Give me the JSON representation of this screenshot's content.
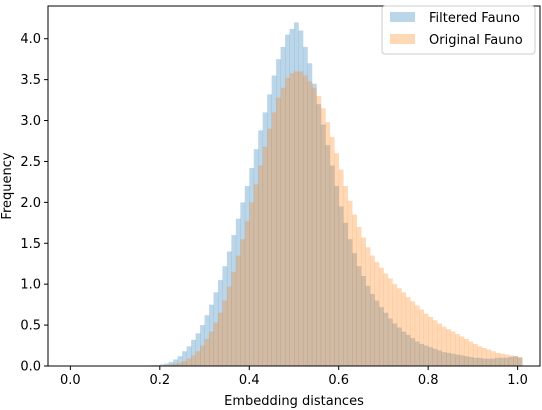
{
  "chart_data": {
    "type": "histogram",
    "xlabel": "Embedding distances",
    "ylabel": "Frequency",
    "xlim": [
      -0.05,
      1.05
    ],
    "ylim": [
      0,
      4.4
    ],
    "x_ticks": [
      {
        "value": 0.0,
        "label": "0.0"
      },
      {
        "value": 0.2,
        "label": "0.2"
      },
      {
        "value": 0.4,
        "label": "0.4"
      },
      {
        "value": 0.6,
        "label": "0.6"
      },
      {
        "value": 0.8,
        "label": "0.8"
      },
      {
        "value": 1.0,
        "label": "1.0"
      }
    ],
    "y_ticks": [
      {
        "value": 0.0,
        "label": "0.0"
      },
      {
        "value": 0.5,
        "label": "0.5"
      },
      {
        "value": 1.0,
        "label": "1.0"
      },
      {
        "value": 1.5,
        "label": "1.5"
      },
      {
        "value": 2.0,
        "label": "2.0"
      },
      {
        "value": 2.5,
        "label": "2.5"
      },
      {
        "value": 3.0,
        "label": "3.0"
      },
      {
        "value": 3.5,
        "label": "3.5"
      },
      {
        "value": 4.0,
        "label": "4.0"
      }
    ],
    "legend_position": "top-right",
    "bin_start": 0.0,
    "bin_width": 0.01,
    "series": [
      {
        "name": "Filtered Fauno",
        "color": "#1f77b4",
        "alpha": 0.3,
        "values": [
          0,
          0,
          0,
          0,
          0,
          0,
          0,
          0,
          0,
          0,
          0,
          0,
          0,
          0,
          0,
          0,
          0,
          0,
          0.01,
          0.01,
          0.02,
          0.03,
          0.05,
          0.08,
          0.12,
          0.18,
          0.24,
          0.32,
          0.4,
          0.5,
          0.62,
          0.75,
          0.9,
          1.05,
          1.22,
          1.4,
          1.6,
          1.8,
          2.0,
          2.2,
          2.42,
          2.65,
          2.88,
          3.1,
          3.32,
          3.55,
          3.75,
          3.9,
          4.05,
          4.12,
          4.2,
          4.1,
          3.9,
          3.7,
          3.45,
          3.2,
          2.95,
          2.7,
          2.45,
          2.2,
          1.95,
          1.75,
          1.55,
          1.38,
          1.22,
          1.1,
          0.98,
          0.88,
          0.8,
          0.72,
          0.65,
          0.58,
          0.52,
          0.47,
          0.42,
          0.38,
          0.34,
          0.3,
          0.27,
          0.25,
          0.23,
          0.21,
          0.19,
          0.17,
          0.16,
          0.15,
          0.14,
          0.13,
          0.12,
          0.11,
          0.1,
          0.1,
          0.09,
          0.09,
          0.09,
          0.1,
          0.1,
          0.1,
          0.11,
          0.12,
          0.1
        ]
      },
      {
        "name": "Original Fauno",
        "color": "#ff7f0e",
        "alpha": 0.3,
        "values": [
          0,
          0,
          0,
          0,
          0,
          0,
          0,
          0,
          0,
          0,
          0,
          0,
          0,
          0,
          0,
          0,
          0,
          0,
          0,
          0,
          0.005,
          0.01,
          0.02,
          0.03,
          0.04,
          0.06,
          0.09,
          0.13,
          0.18,
          0.25,
          0.33,
          0.42,
          0.53,
          0.65,
          0.8,
          0.97,
          1.15,
          1.35,
          1.55,
          1.77,
          2.0,
          2.22,
          2.45,
          2.68,
          2.9,
          3.1,
          3.28,
          3.4,
          3.52,
          3.58,
          3.6,
          3.6,
          3.55,
          3.48,
          3.4,
          3.3,
          3.15,
          2.98,
          2.8,
          2.6,
          2.4,
          2.2,
          2.02,
          1.85,
          1.7,
          1.57,
          1.45,
          1.35,
          1.27,
          1.2,
          1.13,
          1.07,
          1.0,
          0.95,
          0.9,
          0.84,
          0.79,
          0.74,
          0.69,
          0.64,
          0.6,
          0.56,
          0.52,
          0.48,
          0.45,
          0.42,
          0.39,
          0.36,
          0.33,
          0.3,
          0.27,
          0.24,
          0.22,
          0.2,
          0.18,
          0.16,
          0.15,
          0.14,
          0.13,
          0.12,
          0.11
        ]
      }
    ]
  }
}
